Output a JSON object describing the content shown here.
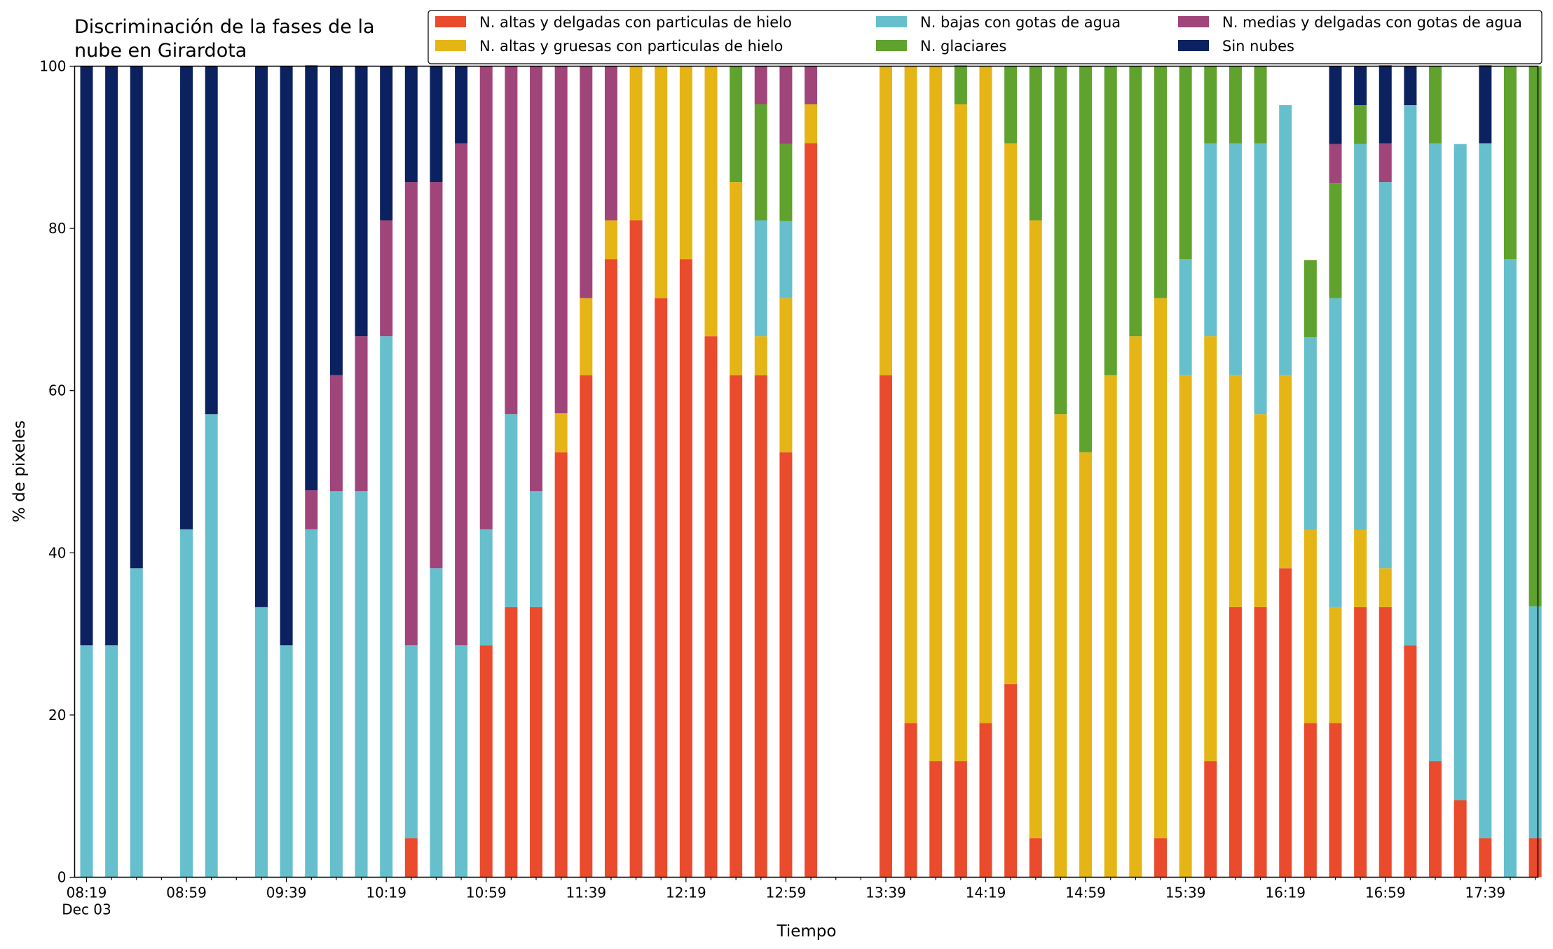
{
  "chart_data": {
    "type": "bar",
    "stacked": true,
    "title": "Discriminación de la fases de la\nnube en Girardota",
    "xlabel": "Tiempo",
    "ylabel": "% de pixeles",
    "ylim": [
      0,
      100
    ],
    "yticks": [
      0,
      20,
      40,
      60,
      80,
      100
    ],
    "xtick_labels": [
      {
        "slot": 0,
        "label": "08:19",
        "sublabel": "Dec 03"
      },
      {
        "slot": 4,
        "label": "08:59"
      },
      {
        "slot": 8,
        "label": "09:39"
      },
      {
        "slot": 12,
        "label": "10:19"
      },
      {
        "slot": 16,
        "label": "10:59"
      },
      {
        "slot": 20,
        "label": "11:39"
      },
      {
        "slot": 24,
        "label": "12:19"
      },
      {
        "slot": 28,
        "label": "12:59"
      },
      {
        "slot": 32,
        "label": "13:39"
      },
      {
        "slot": 36,
        "label": "14:19"
      },
      {
        "slot": 40,
        "label": "14:59"
      },
      {
        "slot": 44,
        "label": "15:39"
      },
      {
        "slot": 48,
        "label": "16:19"
      },
      {
        "slot": 52,
        "label": "16:59"
      },
      {
        "slot": 56,
        "label": "17:39"
      }
    ],
    "x_interval_minutes": 10,
    "legend_position": "top-right",
    "grid": false,
    "series": [
      {
        "name": "N. altas y delgadas con particulas de hielo",
        "color": "#ea4b2d",
        "values": [
          0,
          0,
          0,
          0,
          0,
          0,
          0,
          0,
          0,
          0,
          0,
          0,
          0,
          4.8,
          0,
          0,
          28.6,
          33.3,
          33.3,
          52.4,
          61.9,
          76.2,
          81,
          71.4,
          76.2,
          66.7,
          61.9,
          61.9,
          52.4,
          90.5,
          null,
          0,
          61.9,
          19,
          14.3,
          14.3,
          19,
          23.8,
          4.8,
          0,
          0,
          0,
          0,
          4.8,
          0,
          14.3,
          33.3,
          33.3,
          38.1,
          19,
          19,
          33.3,
          33.3,
          28.6,
          14.3,
          9.5,
          4.8,
          0,
          4.8
        ]
      },
      {
        "name": "N. altas y gruesas con particulas de hielo",
        "color": "#e5b516",
        "values": [
          0,
          0,
          0,
          0,
          0,
          0,
          0,
          0,
          0,
          0,
          0,
          0,
          0,
          0,
          0,
          0,
          0,
          0,
          0,
          4.8,
          9.5,
          4.8,
          19,
          28.6,
          23.8,
          33.3,
          23.8,
          4.8,
          19,
          4.8,
          null,
          0,
          38.1,
          81,
          85.7,
          81,
          81,
          66.7,
          76.2,
          57.1,
          52.4,
          61.9,
          66.7,
          66.6,
          61.9,
          52.4,
          28.6,
          23.8,
          23.8,
          23.8,
          14.3,
          9.5,
          4.8,
          0,
          0,
          0,
          0,
          0,
          0
        ]
      },
      {
        "name": "N. bajas con gotas de agua",
        "color": "#66bfcc",
        "values": [
          28.6,
          28.6,
          38.1,
          0,
          42.9,
          57.1,
          0,
          33.3,
          28.6,
          42.9,
          47.6,
          47.6,
          66.7,
          23.8,
          38.1,
          28.6,
          14.3,
          23.8,
          14.3,
          0,
          0,
          0,
          0,
          0,
          0,
          0,
          0,
          14.3,
          9.5,
          0,
          null,
          0,
          0,
          0,
          0,
          0,
          0,
          0,
          0,
          0,
          0,
          0,
          0,
          0,
          14.3,
          23.8,
          28.6,
          33.4,
          33.3,
          23.8,
          38.1,
          47.6,
          47.6,
          66.6,
          76.2,
          80.9,
          85.7,
          76.2,
          28.6
        ]
      },
      {
        "name": "N. glaciares",
        "color": "#5fa22e",
        "values": [
          0,
          0,
          0,
          0,
          0,
          0,
          0,
          0,
          0,
          0,
          0,
          0,
          0,
          0,
          0,
          0,
          0,
          0,
          0,
          0,
          0,
          0,
          0,
          0,
          0,
          0,
          14.3,
          14.3,
          9.5,
          0,
          null,
          0,
          0,
          0,
          0,
          4.8,
          0,
          9.5,
          19,
          42.9,
          47.6,
          38.1,
          33.3,
          28.6,
          23.8,
          9.5,
          9.5,
          9.5,
          0,
          9.5,
          14.2,
          4.8,
          0,
          0,
          9.5,
          0,
          0,
          23.8,
          66.6
        ]
      },
      {
        "name": "N. medias y delgadas con gotas de agua",
        "color": "#a0457a",
        "values": [
          0,
          0,
          0,
          0,
          0,
          0,
          0,
          0,
          0,
          4.8,
          14.3,
          19.1,
          14.3,
          57.1,
          47.6,
          61.9,
          57.1,
          42.9,
          52.4,
          42.8,
          28.6,
          19,
          0,
          0,
          0,
          0,
          0,
          4.7,
          9.6,
          4.7,
          null,
          0,
          0,
          0,
          0,
          0,
          0,
          0,
          0,
          0,
          0,
          0,
          0,
          0,
          0,
          0,
          0,
          0,
          0,
          0,
          4.8,
          0,
          4.8,
          0,
          0,
          0,
          0,
          0,
          0
        ]
      },
      {
        "name": "Sin nubes",
        "color": "#0b2160",
        "values": [
          71.4,
          71.4,
          61.9,
          0,
          57.1,
          42.9,
          0,
          66.7,
          71.4,
          52.4,
          38.1,
          33.3,
          19,
          14.3,
          14.3,
          9.5,
          0,
          0,
          0,
          0,
          0,
          0,
          0,
          0,
          0,
          0,
          0,
          0,
          0,
          0,
          null,
          0,
          0,
          0,
          0,
          0,
          0,
          0,
          0,
          0,
          0,
          0,
          0,
          0,
          0,
          0,
          0,
          0,
          0,
          0,
          9.6,
          4.8,
          9.6,
          4.8,
          0,
          0,
          9.6,
          0,
          0
        ]
      }
    ]
  }
}
